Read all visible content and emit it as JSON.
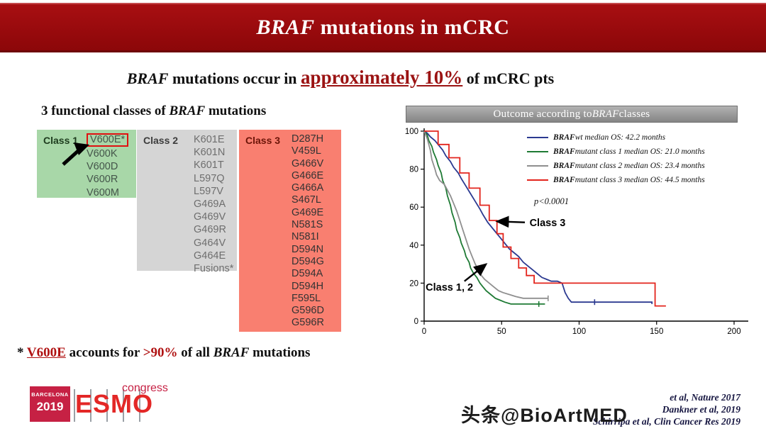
{
  "header": {
    "title_italic": "BRAF",
    "title_rest": " mutations in mCRC"
  },
  "subtitle": {
    "gene": "BRAF",
    "pre": " mutations occur in ",
    "highlight": "approximately 10%",
    "post": " of mCRC pts"
  },
  "classes": {
    "heading_pre": "3 functional classes of ",
    "heading_gene": "BRAF",
    "heading_post": " mutations",
    "class1": {
      "label": "Class 1",
      "items": [
        "V600E*",
        "V600K",
        "V600D",
        "V600R",
        "V600M"
      ]
    },
    "class2": {
      "label": "Class 2",
      "items": [
        "K601E",
        "K601N",
        "K601T",
        "L597Q",
        "L597V",
        "G469A",
        "G469V",
        "G469R",
        "G464V",
        "G464E",
        "Fusions*"
      ]
    },
    "class3": {
      "label": "Class 3",
      "items": [
        "D287H",
        "V459L",
        "G466V",
        "G466E",
        "G466A",
        "S467L",
        "G469E",
        "N581S",
        "N581I",
        "D594N",
        "D594G",
        "D594A",
        "D594H",
        "F595L",
        "G596D",
        "G596R"
      ]
    }
  },
  "footnote": {
    "star": "* ",
    "gene": "V600E",
    "mid": " accounts for ",
    "pct": ">90%",
    "mid2": " of all ",
    "gene2": "BRAF",
    "end": " mutations"
  },
  "chart_title": {
    "pre": "Outcome according to ",
    "gene": "BRAF",
    "post": " classes"
  },
  "chart_data": {
    "type": "line",
    "subtype": "kaplan-meier-survival",
    "title": "Outcome according to BRAF classes",
    "xlabel": "",
    "ylabel": "",
    "xlim": [
      0,
      200
    ],
    "ylim": [
      0,
      100
    ],
    "x_ticks": [
      0,
      50,
      100,
      150,
      200
    ],
    "y_ticks": [
      0,
      20,
      40,
      60,
      80,
      100
    ],
    "grid": false,
    "legend_position": "top-right",
    "p_value": "p<0.0001",
    "legend": [
      {
        "gene": "BRAF",
        "rest": "wt median OS: 42.2 months",
        "color": "#2b3990"
      },
      {
        "gene": "BRAF",
        "rest": "mutant class 1 median OS: 21.0 months",
        "color": "#1e7a34"
      },
      {
        "gene": "BRAF",
        "rest": "mutant class 2 median OS: 23.4 months",
        "color": "#8f8f8f"
      },
      {
        "gene": "BRAF",
        "rest": "mutant class 3 median OS: 44.5 months",
        "color": "#e3241c"
      }
    ],
    "series": [
      {
        "name": "wt",
        "color": "#2b3990",
        "median_os_months": 42.2,
        "points": [
          [
            0,
            100
          ],
          [
            2,
            99
          ],
          [
            4,
            97
          ],
          [
            7,
            95
          ],
          [
            9,
            93
          ],
          [
            12,
            90
          ],
          [
            14,
            87
          ],
          [
            17,
            84
          ],
          [
            19,
            81
          ],
          [
            22,
            78
          ],
          [
            24,
            75
          ],
          [
            27,
            71
          ],
          [
            30,
            67
          ],
          [
            33,
            63
          ],
          [
            36,
            59
          ],
          [
            38,
            56
          ],
          [
            41,
            52
          ],
          [
            43,
            50
          ],
          [
            46,
            47
          ],
          [
            49,
            44
          ],
          [
            52,
            41
          ],
          [
            55,
            38
          ],
          [
            58,
            36
          ],
          [
            61,
            34
          ],
          [
            64,
            31
          ],
          [
            67,
            29
          ],
          [
            70,
            27
          ],
          [
            73,
            25
          ],
          [
            76,
            23
          ],
          [
            79,
            22
          ],
          [
            82,
            21
          ],
          [
            86,
            21
          ],
          [
            89,
            20
          ],
          [
            91,
            15
          ],
          [
            93,
            12
          ],
          [
            95,
            10
          ],
          [
            147,
            10
          ],
          [
            147,
            9
          ]
        ],
        "censors": [
          [
            110,
            10
          ]
        ]
      },
      {
        "name": "class1",
        "color": "#1e7a34",
        "median_os_months": 21.0,
        "points": [
          [
            0,
            100
          ],
          [
            2,
            98
          ],
          [
            3,
            95
          ],
          [
            5,
            92
          ],
          [
            6,
            89
          ],
          [
            8,
            85
          ],
          [
            9,
            82
          ],
          [
            11,
            78
          ],
          [
            12,
            74
          ],
          [
            14,
            70
          ],
          [
            15,
            66
          ],
          [
            17,
            61
          ],
          [
            18,
            57
          ],
          [
            20,
            52
          ],
          [
            21,
            48
          ],
          [
            23,
            44
          ],
          [
            24,
            41
          ],
          [
            26,
            37
          ],
          [
            27,
            34
          ],
          [
            29,
            31
          ],
          [
            30,
            28
          ],
          [
            32,
            25
          ],
          [
            34,
            23
          ],
          [
            36,
            20
          ],
          [
            38,
            18
          ],
          [
            40,
            16
          ],
          [
            43,
            14
          ],
          [
            46,
            12
          ],
          [
            49,
            11
          ],
          [
            52,
            10
          ],
          [
            56,
            9
          ],
          [
            78,
            9
          ]
        ],
        "censors": [
          [
            74,
            9
          ]
        ]
      },
      {
        "name": "class2",
        "color": "#8f8f8f",
        "median_os_months": 23.4,
        "points": [
          [
            0,
            100
          ],
          [
            2,
            96
          ],
          [
            4,
            90
          ],
          [
            5,
            85
          ],
          [
            7,
            80
          ],
          [
            8,
            77
          ],
          [
            10,
            74
          ],
          [
            13,
            72
          ],
          [
            15,
            69
          ],
          [
            17,
            66
          ],
          [
            19,
            62
          ],
          [
            21,
            58
          ],
          [
            23,
            53
          ],
          [
            25,
            48
          ],
          [
            27,
            43
          ],
          [
            29,
            38
          ],
          [
            31,
            34
          ],
          [
            33,
            30
          ],
          [
            35,
            27
          ],
          [
            37,
            24
          ],
          [
            39,
            22
          ],
          [
            42,
            20
          ],
          [
            45,
            18
          ],
          [
            48,
            16
          ],
          [
            51,
            15
          ],
          [
            55,
            14
          ],
          [
            59,
            13
          ],
          [
            64,
            12
          ],
          [
            80,
            12
          ]
        ],
        "censors": [
          [
            80,
            12
          ]
        ]
      },
      {
        "name": "class3",
        "color": "#e3241c",
        "median_os_months": 44.5,
        "points": [
          [
            0,
            100
          ],
          [
            9,
            100
          ],
          [
            9,
            93
          ],
          [
            16,
            93
          ],
          [
            16,
            86
          ],
          [
            23,
            86
          ],
          [
            23,
            78
          ],
          [
            29,
            78
          ],
          [
            29,
            70
          ],
          [
            36,
            70
          ],
          [
            36,
            61
          ],
          [
            42,
            61
          ],
          [
            42,
            53
          ],
          [
            47,
            53
          ],
          [
            47,
            46
          ],
          [
            51,
            46
          ],
          [
            51,
            39
          ],
          [
            56,
            39
          ],
          [
            56,
            33
          ],
          [
            61,
            33
          ],
          [
            61,
            28
          ],
          [
            66,
            28
          ],
          [
            66,
            24
          ],
          [
            71,
            24
          ],
          [
            71,
            20
          ],
          [
            149,
            20
          ],
          [
            149,
            8
          ],
          [
            156,
            8
          ]
        ],
        "censors": []
      }
    ],
    "annotations": [
      {
        "label": "Class 3",
        "x": 68,
        "y": 50,
        "arrow": {
          "x1": 65,
          "y1": 52,
          "x2": 47,
          "y2": 52.5
        }
      },
      {
        "label": "Class 1, 2",
        "x": 1,
        "y": 16,
        "arrow": {
          "x1": 26,
          "y1": 21,
          "x2": 40,
          "y2": 30
        }
      }
    ]
  },
  "citations": [
    "et al, Nature 2017",
    "Dankner et al, 2019",
    "Schirripa et al, Clin Cancer Res 2019"
  ],
  "watermark": "头条@BioArtMED",
  "logos": {
    "barcelona_city": "BARCELONA",
    "barcelona_year": "2019",
    "esmo": "ESMO",
    "congress": "congress"
  },
  "colors": {
    "banner_red": "#9a0b0e",
    "highlight_red": "#9b1313",
    "class1_bg": "#a8d7a8",
    "class2_bg": "#d5d5d5",
    "class3_bg": "#f97f70"
  }
}
